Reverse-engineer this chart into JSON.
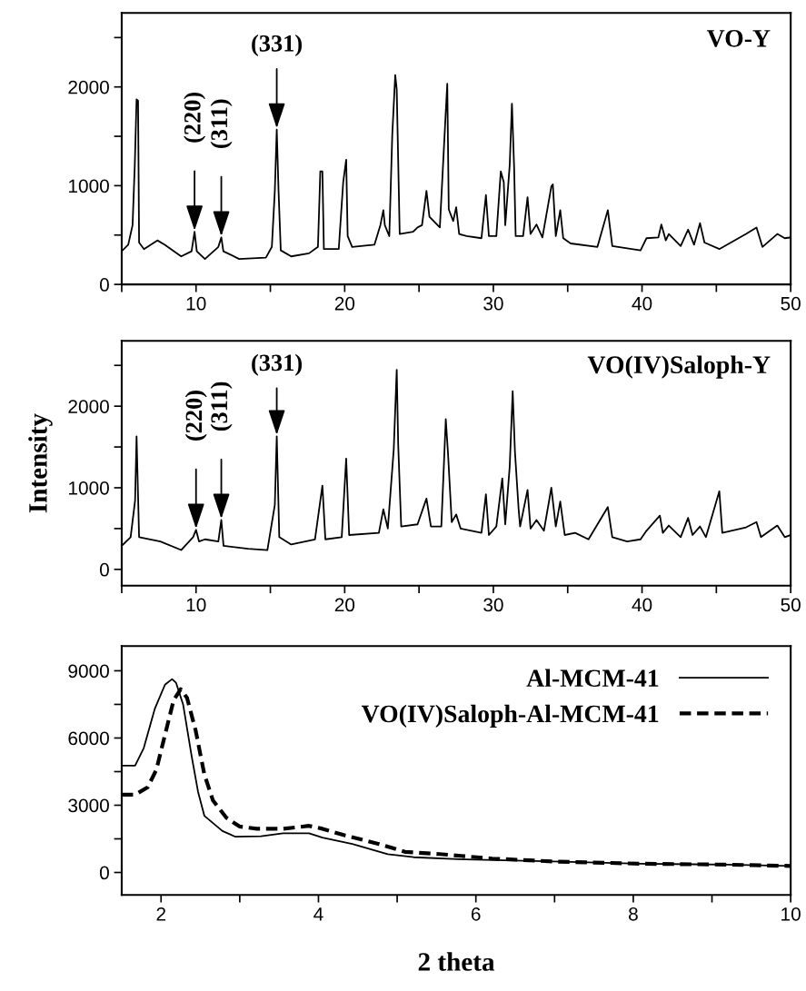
{
  "chart_data": [
    {
      "type": "line",
      "title": "VO-Y",
      "xlim": [
        5,
        50
      ],
      "ylim": [
        0,
        2750
      ],
      "xticks": [
        {
          "value": 5,
          "label": null
        },
        10,
        {
          "value": 15,
          "label": null
        },
        20,
        {
          "value": 25,
          "label": null
        },
        30,
        {
          "value": 35,
          "label": null
        },
        40,
        {
          "value": 45,
          "label": null
        },
        50
      ],
      "yticks": [
        0,
        {
          "value": 500,
          "label": null
        },
        1000,
        {
          "value": 1500,
          "label": null
        },
        2000,
        {
          "value": 2500,
          "label": null
        }
      ],
      "annotations": [
        {
          "text": "(220)",
          "x": 9.9,
          "y": 533
        },
        {
          "text": "(311)",
          "x": 11.7,
          "y": 476
        },
        {
          "text": "(331)",
          "x": 15.43,
          "y": 1569
        }
      ],
      "series": [
        {
          "color": "#000000",
          "x": [
            5,
            5.44,
            5.73,
            5.88,
            6.0,
            6.1,
            6.17,
            6.5,
            7.4,
            7.9,
            9.0,
            9.7,
            9.9,
            10.05,
            10.6,
            11.5,
            11.7,
            11.84,
            12.9,
            14.7,
            15.1,
            15.3,
            15.43,
            15.55,
            15.7,
            16.4,
            17.6,
            18.2,
            18.36,
            18.5,
            18.6,
            19.6,
            19.9,
            20.1,
            20.2,
            20.5,
            22.0,
            22.4,
            22.6,
            22.7,
            23.0,
            23.2,
            23.4,
            23.5,
            23.7,
            24.6,
            24.9,
            25.2,
            25.5,
            25.7,
            26.4,
            26.75,
            26.9,
            27.0,
            27.3,
            27.5,
            27.7,
            28.2,
            29.2,
            29.5,
            29.7,
            30.2,
            30.5,
            30.7,
            30.8,
            31.1,
            31.25,
            31.4,
            31.5,
            32.0,
            32.3,
            32.5,
            32.9,
            33.3,
            33.9,
            34.0,
            34.2,
            34.5,
            34.7,
            35.2,
            37.0,
            37.7,
            38.0,
            39.9,
            40.3,
            41.1,
            41.3,
            41.6,
            41.8,
            42.6,
            43.1,
            43.5,
            43.9,
            44.2,
            45.2,
            47.0,
            47.7,
            48.1,
            49.1,
            49.6,
            50
          ],
          "values": [
            336,
            402,
            600,
            1210,
            1875,
            1860,
            424,
            358,
            446,
            402,
            284,
            336,
            533,
            336,
            258,
            380,
            476,
            336,
            258,
            271,
            380,
            948,
            1569,
            948,
            345,
            284,
            315,
            380,
            1145,
            1145,
            358,
            358,
            1036,
            1263,
            489,
            380,
            402,
            600,
            752,
            600,
            489,
            1516,
            2120,
            1975,
            511,
            533,
            577,
            600,
            948,
            686,
            577,
            1604,
            2032,
            760,
            642,
            782,
            511,
            489,
            468,
            905,
            489,
            489,
            1145,
            1036,
            600,
            1210,
            1831,
            1167,
            489,
            489,
            883,
            511,
            607,
            476,
            992,
            1014,
            489,
            752,
            468,
            415,
            380,
            752,
            389,
            345,
            468,
            476,
            607,
            446,
            511,
            389,
            555,
            402,
            620,
            424,
            358,
            511,
            577,
            380,
            511,
            468,
            476
          ]
        }
      ]
    },
    {
      "type": "line",
      "title": "VO(IV)Saloph-Y",
      "ylabel": "Intensity",
      "xlim": [
        5,
        50
      ],
      "ylim": [
        -200,
        2800
      ],
      "xticks": [
        {
          "value": 5,
          "label": null
        },
        10,
        {
          "value": 15,
          "label": null
        },
        20,
        {
          "value": 25,
          "label": null
        },
        30,
        {
          "value": 35,
          "label": null
        },
        40,
        {
          "value": 45,
          "label": null
        },
        50
      ],
      "yticks": [
        0,
        {
          "value": 500,
          "label": null
        },
        1000,
        {
          "value": 1500,
          "label": null
        },
        2000,
        {
          "value": 2500,
          "label": null
        }
      ],
      "annotations": [
        {
          "text": "(220)",
          "x": 10.0,
          "y": 484
        },
        {
          "text": "(311)",
          "x": 11.7,
          "y": 605
        },
        {
          "text": "(331)",
          "x": 15.43,
          "y": 1631
        }
      ],
      "series": [
        {
          "color": "#000000",
          "x": [
            5,
            5.6,
            5.9,
            6.0,
            6.17,
            7.6,
            9.0,
            9.8,
            10.0,
            10.2,
            10.6,
            11.5,
            11.7,
            11.85,
            13.5,
            14.8,
            15.3,
            15.43,
            15.6,
            16.4,
            18.0,
            18.5,
            18.7,
            19.8,
            20.1,
            20.3,
            22.3,
            22.6,
            22.9,
            23.3,
            23.5,
            23.6,
            23.8,
            24.9,
            25.5,
            25.8,
            26.5,
            26.8,
            26.95,
            27.2,
            27.5,
            27.8,
            29.2,
            29.5,
            29.7,
            30.2,
            30.6,
            30.8,
            31.1,
            31.3,
            31.45,
            31.7,
            31.8,
            32.3,
            32.5,
            32.9,
            33.4,
            33.9,
            34.2,
            34.5,
            34.8,
            35.5,
            36.4,
            37.7,
            38.0,
            39.0,
            39.9,
            40.3,
            41.2,
            41.4,
            41.8,
            42.6,
            43.1,
            43.4,
            43.9,
            44.3,
            45.2,
            45.4,
            47.0,
            47.7,
            48.0,
            49.1,
            49.6,
            50
          ],
          "values": [
            289,
            395,
            842,
            1631,
            395,
            342,
            237,
            395,
            484,
            342,
            368,
            342,
            605,
            289,
            252,
            237,
            789,
            1631,
            395,
            305,
            368,
            1026,
            368,
            395,
            1357,
            421,
            447,
            736,
            500,
            1473,
            2446,
            1525,
            526,
            552,
            868,
            526,
            526,
            1841,
            1420,
            579,
            673,
            500,
            447,
            920,
            421,
            526,
            1115,
            552,
            1262,
            2183,
            1447,
            736,
            526,
            973,
            500,
            605,
            473,
            1000,
            526,
            831,
            421,
            447,
            368,
            763,
            395,
            342,
            368,
            473,
            658,
            447,
            537,
            395,
            631,
            421,
            526,
            395,
            957,
            447,
            515,
            579,
            395,
            537,
            395,
            421
          ]
        }
      ]
    },
    {
      "type": "line",
      "xlabel": "2 theta",
      "xlim": [
        1.5,
        10
      ],
      "ylim": [
        -1000,
        10100
      ],
      "legend": "top right",
      "xticks": [
        2,
        {
          "value": 3,
          "label": null
        },
        4,
        {
          "value": 5,
          "label": null
        },
        6,
        {
          "value": 7,
          "label": null
        },
        8,
        {
          "value": 9,
          "label": null
        },
        10
      ],
      "yticks": [
        0,
        {
          "value": 1500,
          "label": null
        },
        3000,
        {
          "value": 4500,
          "label": null
        },
        6000,
        {
          "value": 7500,
          "label": null
        },
        9000
      ],
      "series": [
        {
          "name": "Al-MCM-41",
          "color": "#000000",
          "line_style": "solid",
          "x": [
            1.5,
            1.67,
            1.78,
            1.92,
            2.05,
            2.14,
            2.19,
            2.28,
            2.39,
            2.47,
            2.55,
            2.78,
            2.94,
            3.27,
            3.55,
            3.88,
            4.05,
            4.43,
            4.88,
            5.21,
            5.87,
            6.98,
            8.09,
            9.19,
            10
          ],
          "values": [
            4770,
            4770,
            5550,
            7300,
            8380,
            8630,
            8470,
            7500,
            5160,
            3600,
            2530,
            1850,
            1600,
            1620,
            1750,
            1750,
            1560,
            1270,
            820,
            680,
            580,
            490,
            390,
            350,
            290
          ]
        },
        {
          "name": "VO(IV)Saloph-Al-MCM-41",
          "color": "#000000",
          "line_style": "dashed",
          "x": [
            1.5,
            1.67,
            1.83,
            1.94,
            2.05,
            2.16,
            2.25,
            2.33,
            2.44,
            2.55,
            2.66,
            2.83,
            3.0,
            3.22,
            3.55,
            3.88,
            4.05,
            4.33,
            4.77,
            5.1,
            5.54,
            6.21,
            6.98,
            8.09,
            9.19,
            10
          ],
          "values": [
            3470,
            3470,
            3800,
            4580,
            6140,
            7690,
            8180,
            7790,
            6330,
            4380,
            3210,
            2440,
            2050,
            1950,
            1950,
            2080,
            1950,
            1660,
            1270,
            920,
            820,
            620,
            490,
            390,
            350,
            290
          ]
        }
      ]
    }
  ]
}
